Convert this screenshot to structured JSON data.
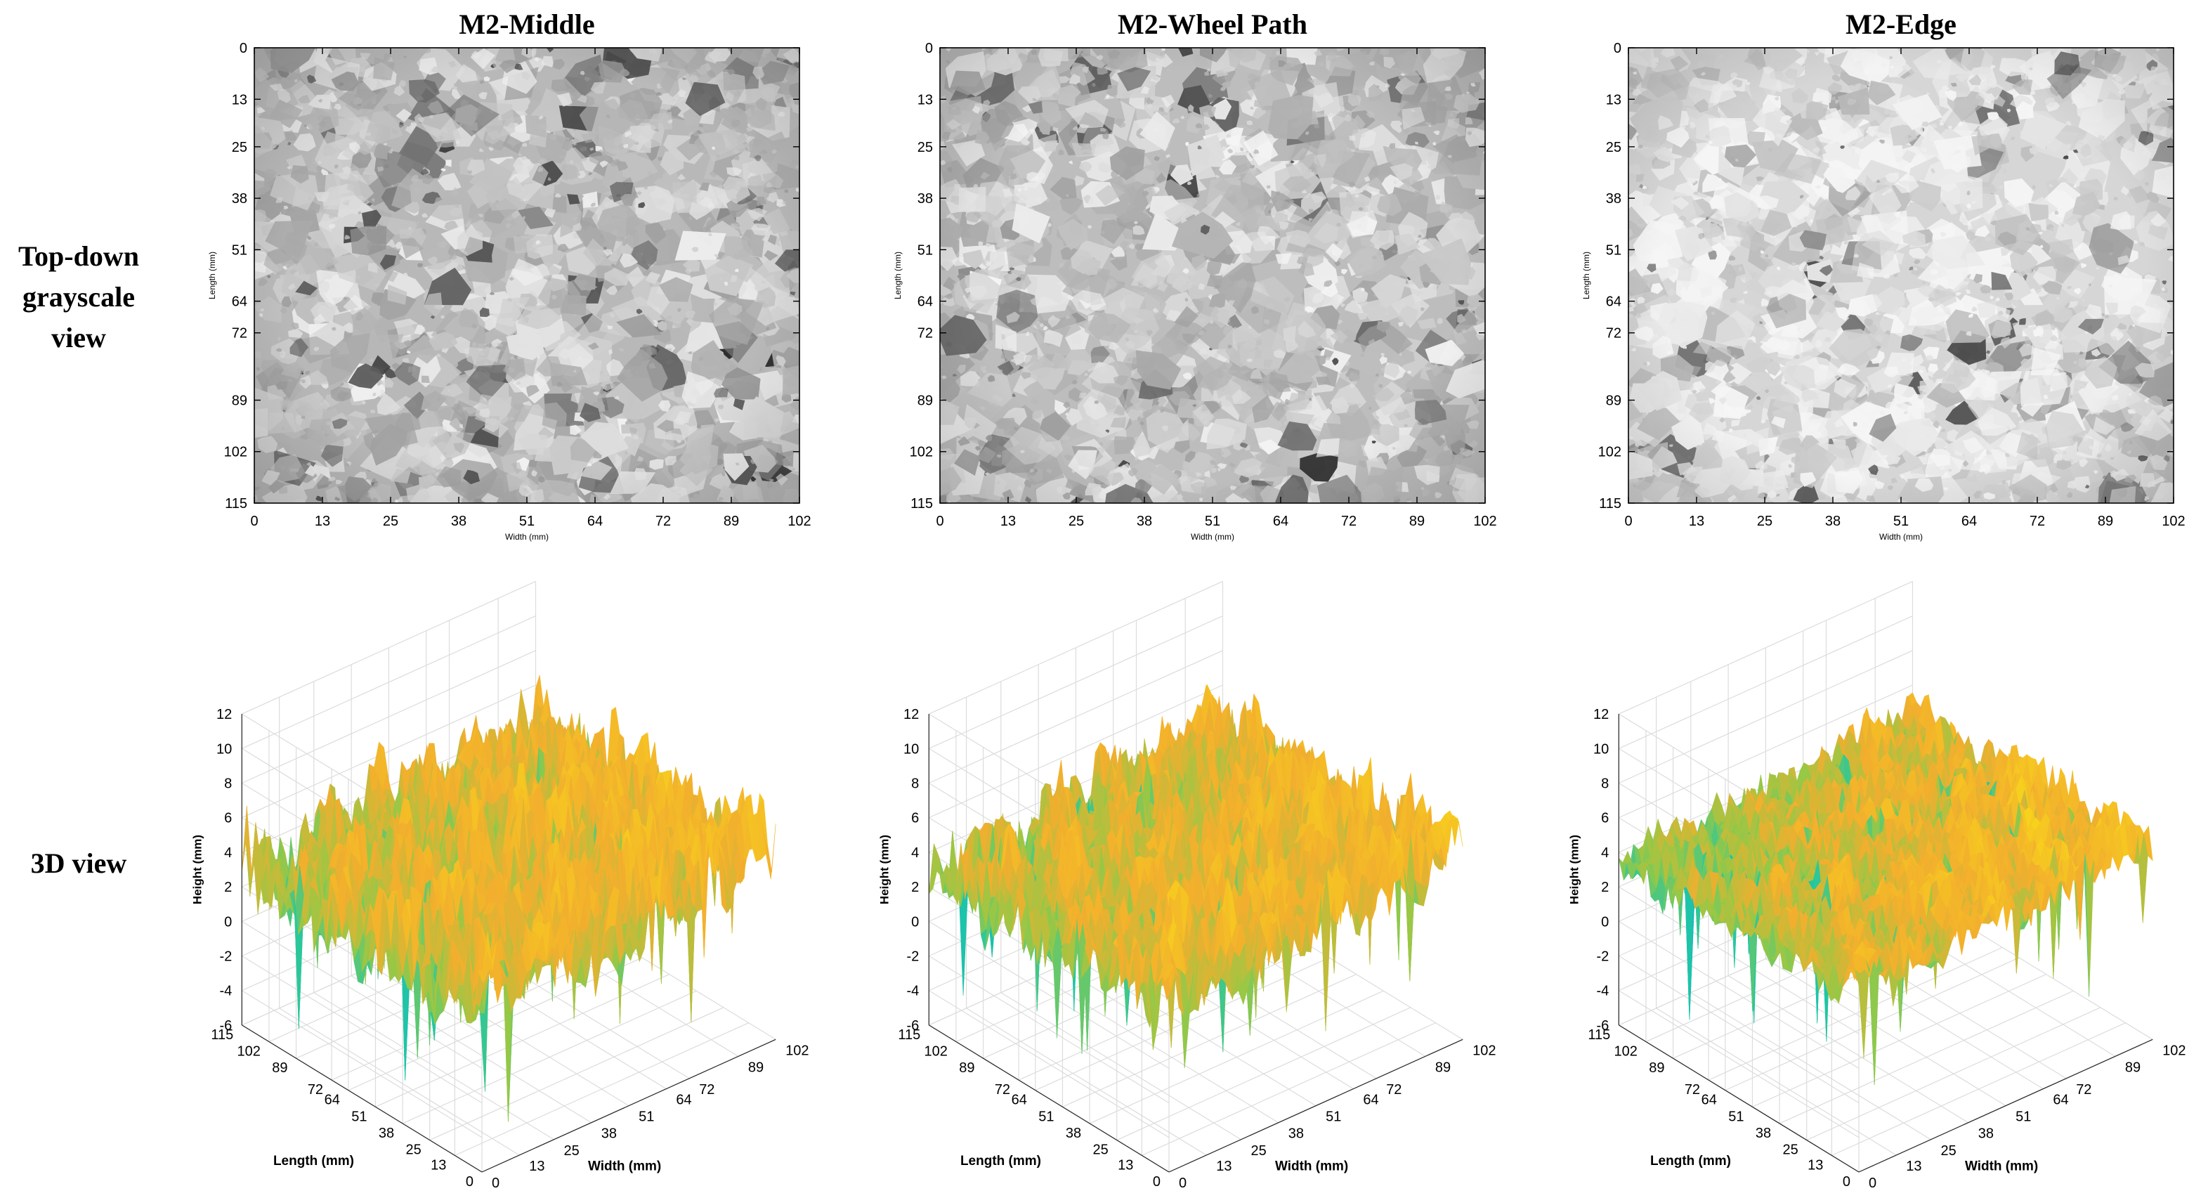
{
  "row_labels": {
    "top": [
      "Top-down",
      "grayscale",
      "view"
    ],
    "bottom": [
      "3D view"
    ]
  },
  "colors": {
    "surface_high": "#f7c81c",
    "surface_mid": "#f2ae2e",
    "surface_low": "#1fc7a4",
    "surface_deep": "#1aa6d8",
    "grid": "#dcdcdc",
    "axis": "#262626"
  },
  "chart_data": [
    {
      "type": "heatmap",
      "panel": "M2-Middle",
      "title": "M2-Middle",
      "view": "top-down grayscale",
      "xlabel": "Width (mm)",
      "ylabel": "Length (mm)",
      "x_ticks": [
        0,
        13,
        25,
        38,
        51,
        64,
        72,
        89,
        102
      ],
      "y_ticks": [
        0,
        13,
        25,
        38,
        51,
        64,
        72,
        89,
        102,
        115
      ],
      "xlim": [
        0,
        102
      ],
      "ylim": [
        0,
        115
      ],
      "colormap": "gray",
      "brightness": 0.72
    },
    {
      "type": "heatmap",
      "panel": "M2-Wheel Path",
      "title": "M2-Wheel Path",
      "view": "top-down grayscale",
      "xlabel": "Width (mm)",
      "ylabel": "Length (mm)",
      "x_ticks": [
        0,
        13,
        25,
        38,
        51,
        64,
        72,
        89,
        102
      ],
      "y_ticks": [
        0,
        13,
        25,
        38,
        51,
        64,
        72,
        89,
        102,
        115
      ],
      "xlim": [
        0,
        102
      ],
      "ylim": [
        0,
        115
      ],
      "colormap": "gray",
      "brightness": 0.74
    },
    {
      "type": "heatmap",
      "panel": "M2-Edge",
      "title": "M2-Edge",
      "view": "top-down grayscale",
      "xlabel": "Width (mm)",
      "ylabel": "Length (mm)",
      "x_ticks": [
        0,
        13,
        25,
        38,
        51,
        64,
        72,
        89,
        102
      ],
      "y_ticks": [
        0,
        13,
        25,
        38,
        51,
        64,
        72,
        89,
        102,
        115
      ],
      "xlim": [
        0,
        102
      ],
      "ylim": [
        0,
        115
      ],
      "colormap": "gray",
      "brightness": 0.84
    },
    {
      "type": "surface3d",
      "panel": "M2-Middle",
      "view": "3D",
      "xlabel": "Width (mm)",
      "ylabel": "Length (mm)",
      "zlabel": "Height (mm)",
      "x_ticks": [
        0,
        13,
        25,
        38,
        51,
        64,
        72,
        89,
        102
      ],
      "y_ticks": [
        0,
        13,
        25,
        38,
        51,
        64,
        72,
        89,
        102,
        115
      ],
      "z_ticks": [
        -6,
        -4,
        -2,
        0,
        2,
        4,
        6,
        8,
        10,
        12
      ],
      "xlim": [
        0,
        102
      ],
      "ylim": [
        0,
        115
      ],
      "zlim": [
        -6,
        12
      ],
      "grid": true,
      "colormap": "parula",
      "mean_height": 4,
      "roughness": 1.9
    },
    {
      "type": "surface3d",
      "panel": "M2-Wheel Path",
      "view": "3D",
      "xlabel": "Width (mm)",
      "ylabel": "Length (mm)",
      "zlabel": "Height (mm)",
      "x_ticks": [
        0,
        13,
        25,
        38,
        51,
        64,
        72,
        89,
        102
      ],
      "y_ticks": [
        0,
        13,
        25,
        38,
        51,
        64,
        72,
        89,
        102,
        115
      ],
      "z_ticks": [
        -6,
        -4,
        -2,
        0,
        2,
        4,
        6,
        8,
        10,
        12
      ],
      "xlim": [
        0,
        102
      ],
      "ylim": [
        0,
        115
      ],
      "zlim": [
        -6,
        12
      ],
      "grid": true,
      "colormap": "parula",
      "mean_height": 4,
      "roughness": 1.7
    },
    {
      "type": "surface3d",
      "panel": "M2-Edge",
      "view": "3D",
      "xlabel": "Width (mm)",
      "ylabel": "Length (mm)",
      "zlabel": "Height (mm)",
      "x_ticks": [
        0,
        13,
        25,
        38,
        51,
        64,
        72,
        89,
        102
      ],
      "y_ticks": [
        0,
        13,
        25,
        38,
        51,
        64,
        72,
        89,
        102,
        115
      ],
      "z_ticks": [
        -6,
        -4,
        -2,
        0,
        2,
        4,
        6,
        8,
        10,
        12
      ],
      "xlim": [
        0,
        102
      ],
      "ylim": [
        0,
        115
      ],
      "zlim": [
        -6,
        12
      ],
      "grid": true,
      "colormap": "parula",
      "mean_height": 4.5,
      "roughness": 1.1
    }
  ]
}
